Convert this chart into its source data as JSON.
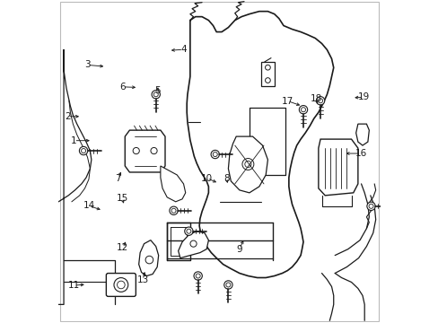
{
  "background_color": "#ffffff",
  "line_color": "#1a1a1a",
  "figsize": [
    4.89,
    3.6
  ],
  "dpi": 100,
  "callouts": {
    "1": {
      "pt": [
        0.105,
        0.565
      ],
      "txt": [
        0.048,
        0.565
      ]
    },
    "2": {
      "pt": [
        0.072,
        0.64
      ],
      "txt": [
        0.028,
        0.64
      ]
    },
    "3": {
      "pt": [
        0.148,
        0.795
      ],
      "txt": [
        0.09,
        0.8
      ]
    },
    "4": {
      "pt": [
        0.342,
        0.845
      ],
      "txt": [
        0.388,
        0.848
      ]
    },
    "5": {
      "pt": [
        0.31,
        0.738
      ],
      "txt": [
        0.308,
        0.72
      ]
    },
    "6": {
      "pt": [
        0.248,
        0.73
      ],
      "txt": [
        0.2,
        0.732
      ]
    },
    "7": {
      "pt": [
        0.198,
        0.475
      ],
      "txt": [
        0.185,
        0.448
      ]
    },
    "8": {
      "pt": [
        0.527,
        0.425
      ],
      "txt": [
        0.522,
        0.448
      ]
    },
    "9": {
      "pt": [
        0.578,
        0.262
      ],
      "txt": [
        0.562,
        0.228
      ]
    },
    "10": {
      "pt": [
        0.498,
        0.432
      ],
      "txt": [
        0.462,
        0.448
      ]
    },
    "11": {
      "pt": [
        0.088,
        0.118
      ],
      "txt": [
        0.048,
        0.115
      ]
    },
    "12": {
      "pt": [
        0.212,
        0.258
      ],
      "txt": [
        0.2,
        0.232
      ]
    },
    "13": {
      "pt": [
        0.27,
        0.165
      ],
      "txt": [
        0.262,
        0.132
      ]
    },
    "14": {
      "pt": [
        0.138,
        0.348
      ],
      "txt": [
        0.095,
        0.362
      ]
    },
    "15": {
      "pt": [
        0.205,
        0.362
      ],
      "txt": [
        0.198,
        0.385
      ]
    },
    "16": {
      "pt": [
        0.885,
        0.525
      ],
      "txt": [
        0.94,
        0.525
      ]
    },
    "17": {
      "pt": [
        0.758,
        0.672
      ],
      "txt": [
        0.712,
        0.688
      ]
    },
    "18": {
      "pt": [
        0.808,
        0.672
      ],
      "txt": [
        0.8,
        0.695
      ]
    },
    "19": {
      "pt": [
        0.912,
        0.698
      ],
      "txt": [
        0.948,
        0.7
      ]
    }
  }
}
